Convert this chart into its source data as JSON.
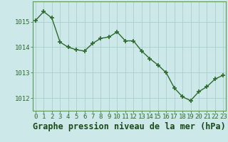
{
  "x": [
    0,
    1,
    2,
    3,
    4,
    5,
    6,
    7,
    8,
    9,
    10,
    11,
    12,
    13,
    14,
    15,
    16,
    17,
    18,
    19,
    20,
    21,
    22,
    23
  ],
  "y": [
    1015.05,
    1015.4,
    1015.15,
    1014.2,
    1014.0,
    1013.9,
    1013.85,
    1014.15,
    1014.35,
    1014.4,
    1014.6,
    1014.25,
    1014.25,
    1013.85,
    1013.55,
    1013.3,
    1013.0,
    1012.4,
    1012.05,
    1011.9,
    1012.25,
    1012.45,
    1012.75,
    1012.9
  ],
  "line_color": "#2d6a2d",
  "marker": "+",
  "marker_size": 4,
  "marker_edge_width": 1.2,
  "bg_color": "#cce8e8",
  "grid_color": "#aacece",
  "title": "Graphe pression niveau de la mer (hPa)",
  "title_color": "#1a4a1a",
  "title_fontsize": 8.5,
  "xlabel_ticks": [
    "0",
    "1",
    "2",
    "3",
    "4",
    "5",
    "6",
    "7",
    "8",
    "9",
    "10",
    "11",
    "12",
    "13",
    "14",
    "15",
    "16",
    "17",
    "18",
    "19",
    "20",
    "21",
    "22",
    "23"
  ],
  "yticks": [
    1012,
    1013,
    1014,
    1015
  ],
  "ylim": [
    1011.5,
    1015.8
  ],
  "xlim": [
    -0.3,
    23.3
  ],
  "tick_color": "#2d6a2d",
  "tick_fontsize": 6.5,
  "border_color": "#5a9a5a",
  "line_width": 1.0
}
